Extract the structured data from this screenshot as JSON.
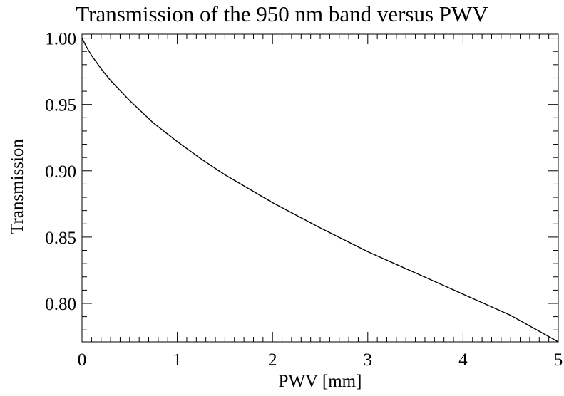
{
  "chart_data": {
    "type": "line",
    "title": "Transmission of the 950 nm band versus PWV",
    "xlabel": "PWV [mm]",
    "ylabel": "Transmission",
    "xlim": [
      0,
      5
    ],
    "ylim": [
      0.771,
      1.003
    ],
    "grid": false,
    "x_ticks": [
      0,
      1,
      2,
      3,
      4,
      5
    ],
    "x_tick_labels": [
      "0",
      "1",
      "2",
      "3",
      "4",
      "5"
    ],
    "y_ticks": [
      1.0,
      0.95,
      0.9,
      0.85,
      0.8
    ],
    "y_tick_labels": [
      "1.00",
      "0.95",
      "0.90",
      "0.85",
      "0.80"
    ],
    "series": [
      {
        "x": [
          0,
          0.05,
          0.1,
          0.2,
          0.3,
          0.5,
          0.75,
          1.0,
          1.25,
          1.5,
          2.0,
          2.5,
          3.0,
          3.5,
          4.0,
          4.5,
          5.0
        ],
        "y": [
          1.0,
          0.993,
          0.987,
          0.977,
          0.968,
          0.953,
          0.936,
          0.922,
          0.909,
          0.897,
          0.876,
          0.857,
          0.839,
          0.823,
          0.807,
          0.791,
          0.771
        ]
      }
    ]
  }
}
